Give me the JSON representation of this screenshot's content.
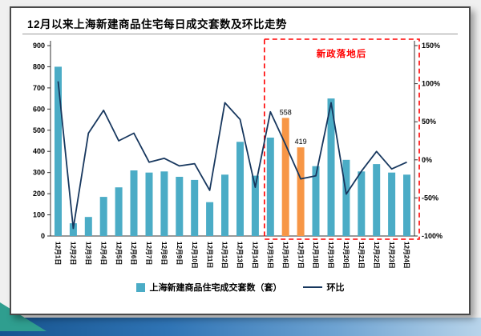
{
  "page": {
    "title": "12月以来上海新建商品住宅每日成交套数及环比走势"
  },
  "chart_data": {
    "type": "combo-bar-line",
    "title": "12月以来上海新建商品住宅每日成交套数及环比走势",
    "categories": [
      "12月1日",
      "12月2日",
      "12月3日",
      "12月4日",
      "12月5日",
      "12月6日",
      "12月7日",
      "12月8日",
      "12月9日",
      "12月10日",
      "12月11日",
      "12月12日",
      "12月13日",
      "12月14日",
      "12月15日",
      "12月16日",
      "12月17日",
      "12月18日",
      "12月19日",
      "12月20日",
      "12月21日",
      "12月22日",
      "12月23日",
      "12月24日"
    ],
    "series": [
      {
        "name": "上海新建商品住宅成交套数（套）",
        "type": "bar",
        "axis": "left",
        "color": "#4BACC6",
        "highlight_color": "#F79646",
        "highlight_indices": [
          15,
          16
        ],
        "values": [
          800,
          60,
          90,
          185,
          230,
          310,
          300,
          305,
          280,
          265,
          160,
          290,
          445,
          285,
          465,
          558,
          419,
          330,
          650,
          360,
          305,
          340,
          300,
          290
        ]
      },
      {
        "name": "环比",
        "type": "line",
        "axis": "right",
        "color": "#17375E",
        "values": [
          103,
          -90,
          35,
          65,
          25,
          35,
          -3,
          2,
          -8,
          -5,
          -40,
          75,
          53,
          -36,
          63,
          20,
          -25,
          -21,
          75,
          -45,
          -15,
          11,
          -12,
          -3
        ]
      }
    ],
    "left_axis": {
      "min": 0,
      "max": 900,
      "step": 100
    },
    "right_axis": {
      "min": -100,
      "max": 150,
      "step": 50,
      "unit": "%"
    },
    "data_labels": [
      {
        "index": 15,
        "text": "558"
      },
      {
        "index": 16,
        "text": "419"
      }
    ],
    "annotation": {
      "text": "新政落地后",
      "color": "#FF0000",
      "box_start_index": 14,
      "style": "red-dashed-box"
    },
    "legend": {
      "bar_label": "上海新建商品住宅成交套数（套）",
      "line_label": "环比"
    },
    "grid": false,
    "legend_position": "bottom-center"
  },
  "colors": {
    "bar": "#4BACC6",
    "bar_highlight": "#F79646",
    "line": "#17375E",
    "annotation": "#FF0000",
    "band_dark": "#17548F",
    "band_light": "#B8D4EA",
    "triangle": "#2F9E8F"
  }
}
